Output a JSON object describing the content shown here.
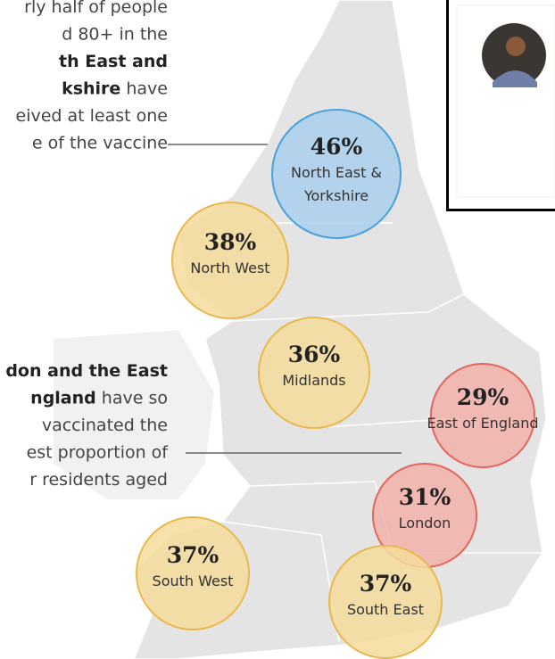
{
  "annotations": [
    {
      "lines": [
        [
          {
            "text": "rly half of people"
          }
        ],
        [
          {
            "text": "d 80+ in the"
          }
        ],
        [
          {
            "text": "th East and",
            "bold": true
          }
        ],
        [
          {
            "text": "kshire",
            "bold": true
          },
          {
            "text": " have"
          }
        ],
        [
          {
            "text": "eived at least one"
          }
        ],
        [
          {
            "text": "e of the vaccine"
          }
        ]
      ]
    },
    {
      "lines": [
        [
          {
            "text": "don and the East",
            "bold": true
          }
        ],
        [
          {
            "text": "ngland",
            "bold": true
          },
          {
            "text": " have so"
          }
        ],
        [
          {
            "text": "vaccinated the"
          }
        ],
        [
          {
            "text": "est proportion of"
          }
        ],
        [
          {
            "text": "r residents aged"
          }
        ]
      ]
    }
  ],
  "regions": [
    {
      "percent": "46%",
      "name": [
        "North East &",
        "Yorkshire"
      ],
      "color": "blue"
    },
    {
      "percent": "38%",
      "name": [
        "North West"
      ],
      "color": "yellow"
    },
    {
      "percent": "36%",
      "name": [
        "Midlands"
      ],
      "color": "yellow"
    },
    {
      "percent": "29%",
      "name": [
        "East of England"
      ],
      "color": "red"
    },
    {
      "percent": "31%",
      "name": [
        "London"
      ],
      "color": "red"
    },
    {
      "percent": "37%",
      "name": [
        "South West"
      ],
      "color": "yellow"
    },
    {
      "percent": "37%",
      "name": [
        "South East"
      ],
      "color": "yellow"
    }
  ]
}
